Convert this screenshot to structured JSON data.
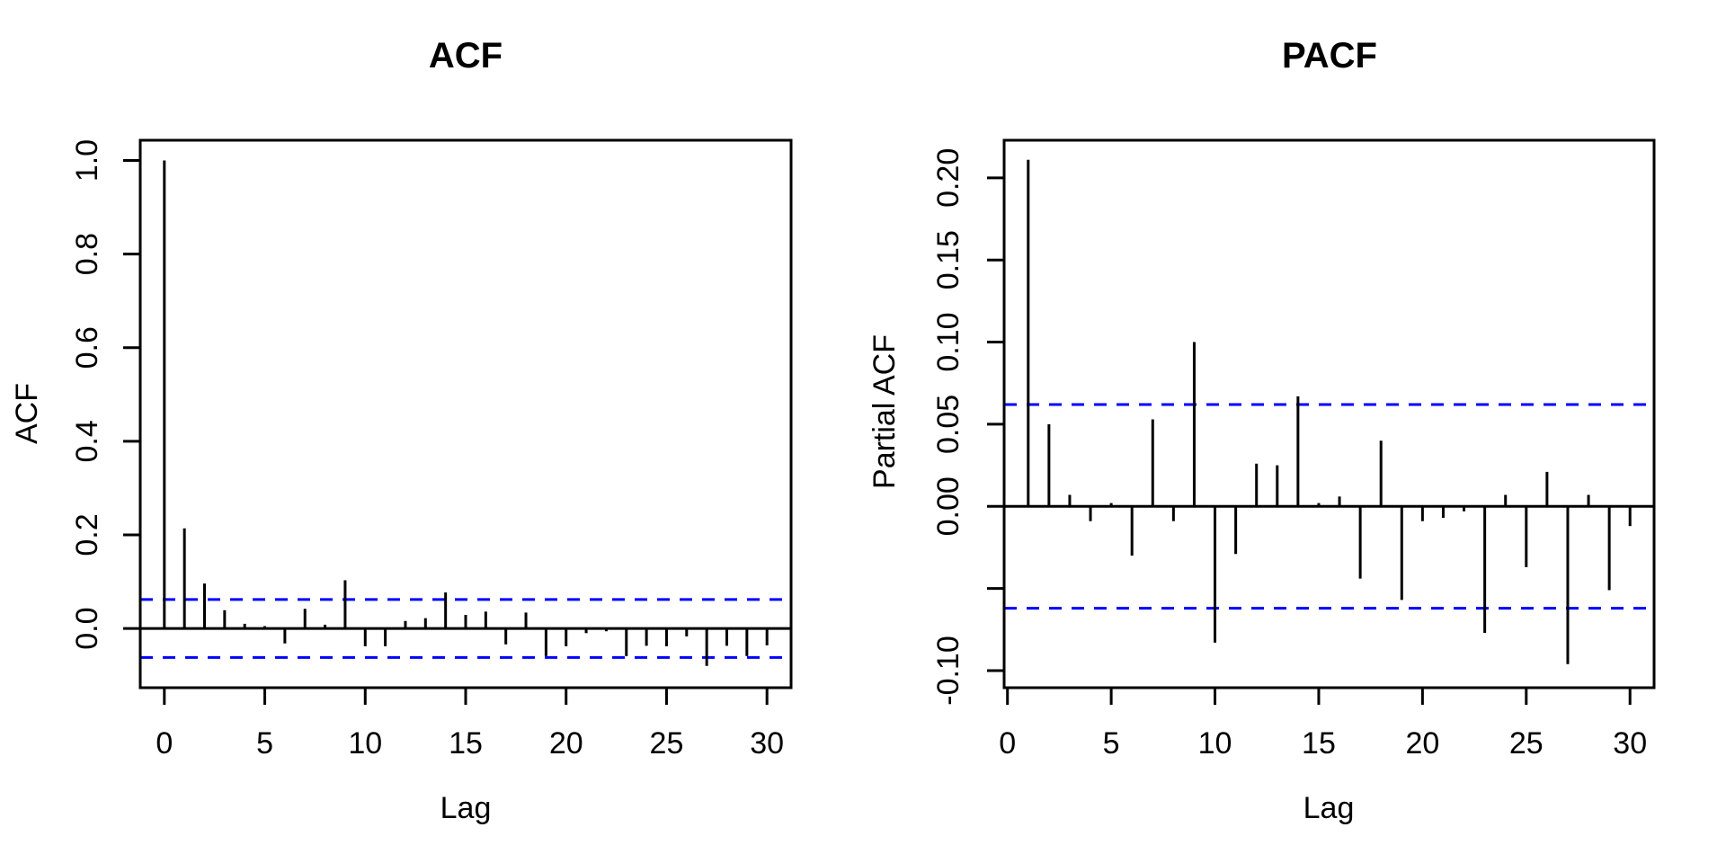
{
  "figure": {
    "background_color": "#ffffff",
    "axis_color": "#000000",
    "bar_color": "#000000",
    "conf_band_color": "#0000ff"
  },
  "chart_data": [
    {
      "type": "bar",
      "panel": "left",
      "title": "ACF",
      "xlabel": "Lag",
      "ylabel": "ACF",
      "x": [
        0,
        1,
        2,
        3,
        4,
        5,
        6,
        7,
        8,
        9,
        10,
        11,
        12,
        13,
        14,
        15,
        16,
        17,
        18,
        19,
        20,
        21,
        22,
        23,
        24,
        25,
        26,
        27,
        28,
        29,
        30
      ],
      "values": [
        1.0,
        0.214,
        0.096,
        0.039,
        0.01,
        0.005,
        -0.032,
        0.042,
        0.008,
        0.103,
        -0.038,
        -0.038,
        0.016,
        0.022,
        0.077,
        0.029,
        0.036,
        -0.034,
        0.034,
        -0.059,
        -0.038,
        -0.01,
        -0.006,
        -0.059,
        -0.037,
        -0.038,
        -0.017,
        -0.08,
        -0.037,
        -0.059,
        -0.036
      ],
      "xlim": [
        -1.2,
        31.2
      ],
      "ylim": [
        -0.1266,
        1.0433
      ],
      "xticks": [
        0,
        5,
        10,
        15,
        20,
        25,
        30
      ],
      "xtick_labels": [
        "0",
        "5",
        "10",
        "15",
        "20",
        "25",
        "30"
      ],
      "yticks": [
        0.0,
        0.2,
        0.4,
        0.6,
        0.8,
        1.0
      ],
      "ytick_labels": [
        "0.0",
        "0.2",
        "0.4",
        "0.6",
        "0.8",
        "1.0"
      ],
      "conf_level": 0.062,
      "zero_line": true,
      "grid": false,
      "legend": null
    },
    {
      "type": "bar",
      "panel": "right",
      "title": "PACF",
      "xlabel": "Lag",
      "ylabel": "Partial ACF",
      "x": [
        1,
        2,
        3,
        4,
        5,
        6,
        7,
        8,
        9,
        10,
        11,
        12,
        13,
        14,
        15,
        16,
        17,
        18,
        19,
        20,
        21,
        22,
        23,
        24,
        25,
        26,
        27,
        28,
        29,
        30
      ],
      "values": [
        0.211,
        0.05,
        0.007,
        -0.009,
        0.002,
        -0.03,
        0.053,
        -0.009,
        0.1,
        -0.083,
        -0.029,
        0.026,
        0.025,
        0.067,
        0.002,
        0.006,
        -0.044,
        0.04,
        -0.057,
        -0.009,
        -0.007,
        -0.003,
        -0.077,
        0.007,
        -0.037,
        0.021,
        -0.096,
        0.007,
        -0.051,
        -0.012
      ],
      "xlim": [
        -0.16,
        31.16
      ],
      "ylim": [
        -0.1104,
        0.2229
      ],
      "xticks": [
        0,
        5,
        10,
        15,
        20,
        25,
        30
      ],
      "xtick_labels": [
        "0",
        "5",
        "10",
        "15",
        "20",
        "25",
        "30"
      ],
      "yticks": [
        0.2,
        0.15,
        0.1,
        0.05,
        0.0,
        -0.05,
        -0.1
      ],
      "ytick_labels": [
        "0.20",
        "0.15",
        "0.10",
        "0.05",
        "0.00",
        "",
        "-0.10"
      ],
      "conf_level": 0.062,
      "zero_line": true,
      "grid": false,
      "legend": null
    }
  ]
}
